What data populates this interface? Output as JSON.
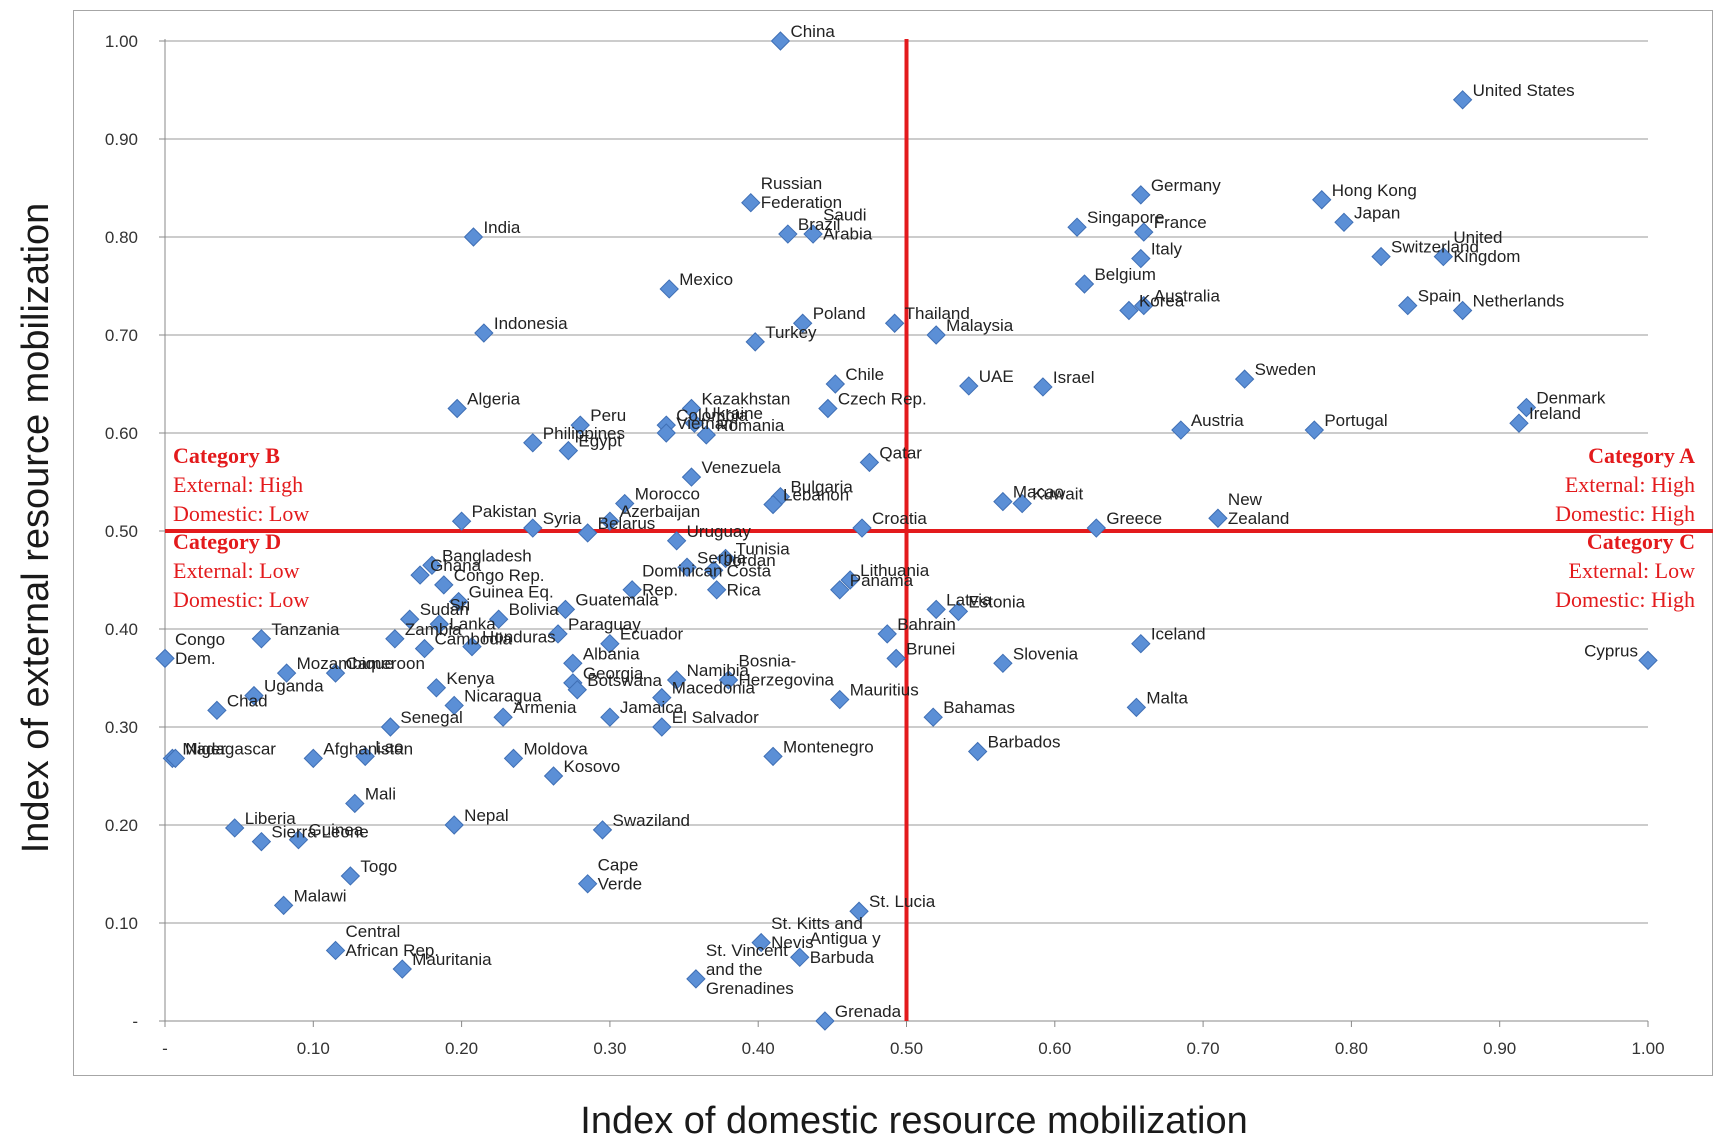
{
  "chart_data": {
    "type": "scatter",
    "title": "",
    "xlabel": "Index of domestic resource mobilization",
    "ylabel": "Index of external resource mobilization",
    "xlim": [
      0,
      1
    ],
    "ylim": [
      0,
      1
    ],
    "xticks": [
      "-",
      "0.10",
      "0.20",
      "0.30",
      "0.40",
      "0.50",
      "0.60",
      "0.70",
      "0.80",
      "0.90",
      "1.00"
    ],
    "yticks": [
      "-",
      "0.10",
      "0.20",
      "0.30",
      "0.40",
      "0.50",
      "0.60",
      "0.70",
      "0.80",
      "0.90",
      "1.00"
    ],
    "grid": "horizontal",
    "threshold_lines": {
      "x": 0.5,
      "y": 0.5,
      "color": "#e31a1c"
    },
    "marker_color": "#5b8fd6",
    "categories": [
      {
        "name": "Category A",
        "lines": [
          "External: High",
          "Domestic: High"
        ]
      },
      {
        "name": "Category B",
        "lines": [
          "External: High",
          "Domestic: Low"
        ]
      },
      {
        "name": "Category C",
        "lines": [
          "External: Low",
          "Domestic: High"
        ]
      },
      {
        "name": "Category D",
        "lines": [
          "External: Low",
          "Domestic: Low"
        ]
      }
    ],
    "points": [
      {
        "label": "China",
        "x": 0.415,
        "y": 1.0
      },
      {
        "label": "United States",
        "x": 0.875,
        "y": 0.94
      },
      {
        "label": "Russian Federation",
        "x": 0.395,
        "y": 0.835
      },
      {
        "label": "Brazil",
        "x": 0.42,
        "y": 0.803
      },
      {
        "label": "Saudi Arabia",
        "x": 0.437,
        "y": 0.803
      },
      {
        "label": "India",
        "x": 0.208,
        "y": 0.8
      },
      {
        "label": "Germany",
        "x": 0.658,
        "y": 0.843
      },
      {
        "label": "France",
        "x": 0.66,
        "y": 0.805
      },
      {
        "label": "Singapore",
        "x": 0.615,
        "y": 0.81
      },
      {
        "label": "Hong Kong",
        "x": 0.78,
        "y": 0.838
      },
      {
        "label": "Japan",
        "x": 0.795,
        "y": 0.815
      },
      {
        "label": "United Kingdom",
        "x": 0.862,
        "y": 0.78
      },
      {
        "label": "Switzerland",
        "x": 0.82,
        "y": 0.78
      },
      {
        "label": "Italy",
        "x": 0.658,
        "y": 0.778
      },
      {
        "label": "Belgium",
        "x": 0.62,
        "y": 0.752
      },
      {
        "label": "Mexico",
        "x": 0.34,
        "y": 0.747
      },
      {
        "label": "Australia",
        "x": 0.66,
        "y": 0.73
      },
      {
        "label": "Korea",
        "x": 0.65,
        "y": 0.725
      },
      {
        "label": "Netherlands",
        "x": 0.875,
        "y": 0.725
      },
      {
        "label": "Spain",
        "x": 0.838,
        "y": 0.73
      },
      {
        "label": "Poland",
        "x": 0.43,
        "y": 0.712
      },
      {
        "label": "Thailand",
        "x": 0.492,
        "y": 0.712
      },
      {
        "label": "Malaysia",
        "x": 0.52,
        "y": 0.7
      },
      {
        "label": "Indonesia",
        "x": 0.215,
        "y": 0.702
      },
      {
        "label": "Turkey",
        "x": 0.398,
        "y": 0.693
      },
      {
        "label": "Sweden",
        "x": 0.728,
        "y": 0.655
      },
      {
        "label": "Chile",
        "x": 0.452,
        "y": 0.65
      },
      {
        "label": "UAE",
        "x": 0.542,
        "y": 0.648
      },
      {
        "label": "Israel",
        "x": 0.592,
        "y": 0.647
      },
      {
        "label": "Denmark",
        "x": 0.918,
        "y": 0.626
      },
      {
        "label": "Czech Rep.",
        "x": 0.447,
        "y": 0.625
      },
      {
        "label": "Algeria",
        "x": 0.197,
        "y": 0.625
      },
      {
        "label": "Kazakhstan",
        "x": 0.355,
        "y": 0.625
      },
      {
        "label": "Colombia",
        "x": 0.338,
        "y": 0.608
      },
      {
        "label": "Ukraine",
        "x": 0.357,
        "y": 0.61
      },
      {
        "label": "Peru",
        "x": 0.28,
        "y": 0.608
      },
      {
        "label": "Ireland",
        "x": 0.913,
        "y": 0.61
      },
      {
        "label": "Austria",
        "x": 0.685,
        "y": 0.603
      },
      {
        "label": "Portugal",
        "x": 0.775,
        "y": 0.603
      },
      {
        "label": "Vietnam",
        "x": 0.338,
        "y": 0.6
      },
      {
        "label": "Romania",
        "x": 0.365,
        "y": 0.598
      },
      {
        "label": "Philippines",
        "x": 0.248,
        "y": 0.59
      },
      {
        "label": "Egypt",
        "x": 0.272,
        "y": 0.582
      },
      {
        "label": "Qatar",
        "x": 0.475,
        "y": 0.57
      },
      {
        "label": "Venezuela",
        "x": 0.355,
        "y": 0.555
      },
      {
        "label": "Bulgaria",
        "x": 0.415,
        "y": 0.535
      },
      {
        "label": "Macao",
        "x": 0.565,
        "y": 0.53
      },
      {
        "label": "Kuwait",
        "x": 0.578,
        "y": 0.528
      },
      {
        "label": "Lebanon",
        "x": 0.41,
        "y": 0.527
      },
      {
        "label": "Morocco",
        "x": 0.31,
        "y": 0.528
      },
      {
        "label": "New Zealand",
        "x": 0.71,
        "y": 0.513
      },
      {
        "label": "Pakistan",
        "x": 0.2,
        "y": 0.51
      },
      {
        "label": "Azerbaijan",
        "x": 0.3,
        "y": 0.51
      },
      {
        "label": "Syria",
        "x": 0.248,
        "y": 0.503
      },
      {
        "label": "Croatia",
        "x": 0.47,
        "y": 0.503
      },
      {
        "label": "Greece",
        "x": 0.628,
        "y": 0.503
      },
      {
        "label": "Belarus",
        "x": 0.285,
        "y": 0.498
      },
      {
        "label": "Uruguay",
        "x": 0.345,
        "y": 0.49
      },
      {
        "label": "Tunisia",
        "x": 0.378,
        "y": 0.472
      },
      {
        "label": "Dominican Rep.",
        "x": 0.315,
        "y": 0.44
      },
      {
        "label": "Serbia",
        "x": 0.352,
        "y": 0.463
      },
      {
        "label": "Jordan",
        "x": 0.37,
        "y": 0.46
      },
      {
        "label": "Costa Rica",
        "x": 0.372,
        "y": 0.44
      },
      {
        "label": "Bangladesh",
        "x": 0.18,
        "y": 0.465
      },
      {
        "label": "Ghana",
        "x": 0.172,
        "y": 0.455
      },
      {
        "label": "Congo Rep.",
        "x": 0.188,
        "y": 0.445
      },
      {
        "label": "Lithuania",
        "x": 0.462,
        "y": 0.45
      },
      {
        "label": "Panama",
        "x": 0.455,
        "y": 0.44
      },
      {
        "label": "Latvia",
        "x": 0.52,
        "y": 0.42
      },
      {
        "label": "Estonia",
        "x": 0.535,
        "y": 0.418
      },
      {
        "label": "Guinea Eq.",
        "x": 0.198,
        "y": 0.428
      },
      {
        "label": "Bolivia",
        "x": 0.225,
        "y": 0.41
      },
      {
        "label": "Guatemala",
        "x": 0.27,
        "y": 0.42
      },
      {
        "label": "Sudan",
        "x": 0.165,
        "y": 0.41
      },
      {
        "label": "Sri Lanka",
        "x": 0.185,
        "y": 0.405
      },
      {
        "label": "Tanzania",
        "x": 0.065,
        "y": 0.39
      },
      {
        "label": "Zambia",
        "x": 0.155,
        "y": 0.39
      },
      {
        "label": "Paraguay",
        "x": 0.265,
        "y": 0.395
      },
      {
        "label": "Ecuador",
        "x": 0.3,
        "y": 0.385
      },
      {
        "label": "Bahrain",
        "x": 0.487,
        "y": 0.395
      },
      {
        "label": "Iceland",
        "x": 0.658,
        "y": 0.385
      },
      {
        "label": "Cambodia",
        "x": 0.175,
        "y": 0.38
      },
      {
        "label": "Honduras",
        "x": 0.207,
        "y": 0.382
      },
      {
        "label": "Congo Dem.",
        "x": 0.0,
        "y": 0.37
      },
      {
        "label": "Mozambique",
        "x": 0.082,
        "y": 0.355
      },
      {
        "label": "Cameroon",
        "x": 0.115,
        "y": 0.355
      },
      {
        "label": "Albania",
        "x": 0.275,
        "y": 0.365
      },
      {
        "label": "Namibia",
        "x": 0.345,
        "y": 0.348
      },
      {
        "label": "Bosnia-Herzegovina",
        "x": 0.38,
        "y": 0.348
      },
      {
        "label": "Brunei",
        "x": 0.493,
        "y": 0.37
      },
      {
        "label": "Slovenia",
        "x": 0.565,
        "y": 0.365
      },
      {
        "label": "Cyprus",
        "x": 1.0,
        "y": 0.368
      },
      {
        "label": "Uganda",
        "x": 0.06,
        "y": 0.332
      },
      {
        "label": "Georgia",
        "x": 0.275,
        "y": 0.345
      },
      {
        "label": "Kenya",
        "x": 0.183,
        "y": 0.34
      },
      {
        "label": "Botswana",
        "x": 0.278,
        "y": 0.338
      },
      {
        "label": "Chad",
        "x": 0.035,
        "y": 0.317
      },
      {
        "label": "Nicaragua",
        "x": 0.195,
        "y": 0.322
      },
      {
        "label": "Macedonia",
        "x": 0.335,
        "y": 0.33
      },
      {
        "label": "Mauritius",
        "x": 0.455,
        "y": 0.328
      },
      {
        "label": "Malta",
        "x": 0.655,
        "y": 0.32
      },
      {
        "label": "Armenia",
        "x": 0.228,
        "y": 0.31
      },
      {
        "label": "Jamaica",
        "x": 0.3,
        "y": 0.31
      },
      {
        "label": "Bahamas",
        "x": 0.518,
        "y": 0.31
      },
      {
        "label": "Senegal",
        "x": 0.152,
        "y": 0.3
      },
      {
        "label": "Madagascar",
        "x": 0.005,
        "y": 0.268
      },
      {
        "label": "Lao",
        "x": 0.135,
        "y": 0.27
      },
      {
        "label": "El Salvador",
        "x": 0.335,
        "y": 0.3
      },
      {
        "label": "Niger",
        "x": 0.007,
        "y": 0.268
      },
      {
        "label": "Afghanistan",
        "x": 0.1,
        "y": 0.268
      },
      {
        "label": "Moldova",
        "x": 0.235,
        "y": 0.268
      },
      {
        "label": "Montenegro",
        "x": 0.41,
        "y": 0.27
      },
      {
        "label": "Barbados",
        "x": 0.548,
        "y": 0.275
      },
      {
        "label": "Kosovo",
        "x": 0.262,
        "y": 0.25
      },
      {
        "label": "Mali",
        "x": 0.128,
        "y": 0.222
      },
      {
        "label": "Nepal",
        "x": 0.195,
        "y": 0.2
      },
      {
        "label": "Liberia",
        "x": 0.047,
        "y": 0.197
      },
      {
        "label": "Swaziland",
        "x": 0.295,
        "y": 0.195
      },
      {
        "label": "Sierra Leone",
        "x": 0.065,
        "y": 0.183
      },
      {
        "label": "Guinea",
        "x": 0.09,
        "y": 0.185
      },
      {
        "label": "Togo",
        "x": 0.125,
        "y": 0.148
      },
      {
        "label": "Cape Verde",
        "x": 0.285,
        "y": 0.14
      },
      {
        "label": "Malawi",
        "x": 0.08,
        "y": 0.118
      },
      {
        "label": "St. Lucia",
        "x": 0.468,
        "y": 0.112
      },
      {
        "label": "St. Kitts and Nevis",
        "x": 0.402,
        "y": 0.08
      },
      {
        "label": "Central African Rep.",
        "x": 0.115,
        "y": 0.072
      },
      {
        "label": "Antigua y Barbuda",
        "x": 0.428,
        "y": 0.065
      },
      {
        "label": "Mauritania",
        "x": 0.16,
        "y": 0.053
      },
      {
        "label": "St. Vincent and the Grenadines",
        "x": 0.358,
        "y": 0.043
      },
      {
        "label": "Grenada",
        "x": 0.445,
        "y": 0.0
      }
    ]
  }
}
